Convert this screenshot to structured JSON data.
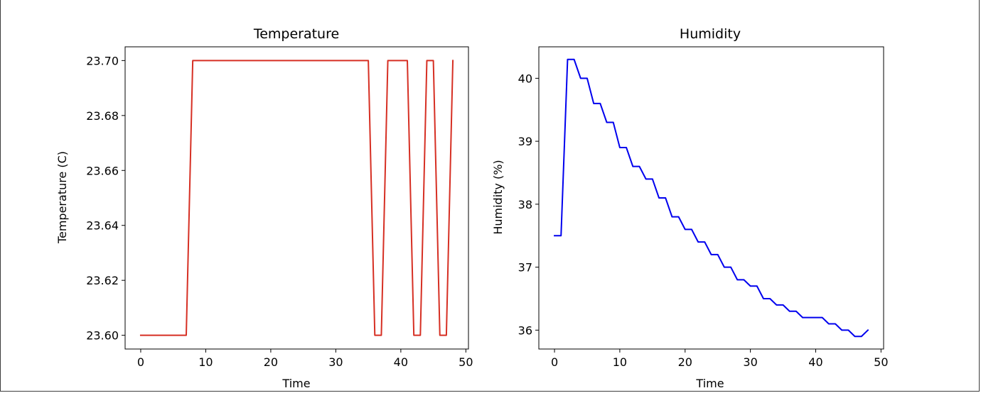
{
  "chart_data": [
    {
      "type": "line",
      "title": "Temperature",
      "xlabel": "Time",
      "ylabel": "Temperature (C)",
      "xlim": [
        -2.4,
        50.4
      ],
      "ylim": [
        23.595,
        23.705
      ],
      "xticks": [
        0,
        10,
        20,
        30,
        40,
        50
      ],
      "xtick_labels": [
        "0",
        "10",
        "20",
        "30",
        "40",
        "50"
      ],
      "yticks": [
        23.6,
        23.62,
        23.64,
        23.66,
        23.68,
        23.7
      ],
      "ytick_labels": [
        "23.60",
        "23.62",
        "23.64",
        "23.66",
        "23.68",
        "23.70"
      ],
      "grid": false,
      "color": "#d62f23",
      "x": [
        0,
        1,
        2,
        3,
        4,
        5,
        6,
        7,
        8,
        9,
        10,
        11,
        12,
        13,
        14,
        15,
        16,
        17,
        18,
        19,
        20,
        21,
        22,
        23,
        24,
        25,
        26,
        27,
        28,
        29,
        30,
        31,
        32,
        33,
        34,
        35,
        36,
        37,
        38,
        39,
        40,
        41,
        42,
        43,
        44,
        45,
        46,
        47,
        48
      ],
      "y": [
        23.6,
        23.6,
        23.6,
        23.6,
        23.6,
        23.6,
        23.6,
        23.6,
        23.7,
        23.7,
        23.7,
        23.7,
        23.7,
        23.7,
        23.7,
        23.7,
        23.7,
        23.7,
        23.7,
        23.7,
        23.7,
        23.7,
        23.7,
        23.7,
        23.7,
        23.7,
        23.7,
        23.7,
        23.7,
        23.7,
        23.7,
        23.7,
        23.7,
        23.7,
        23.7,
        23.7,
        23.6,
        23.6,
        23.7,
        23.7,
        23.7,
        23.7,
        23.6,
        23.6,
        23.7,
        23.7,
        23.6,
        23.6,
        23.7
      ]
    },
    {
      "type": "line",
      "title": "Humidity",
      "xlabel": "Time",
      "ylabel": "Humidity (%)",
      "xlim": [
        -2.4,
        50.4
      ],
      "ylim": [
        35.7,
        40.5
      ],
      "xticks": [
        0,
        10,
        20,
        30,
        40,
        50
      ],
      "xtick_labels": [
        "0",
        "10",
        "20",
        "30",
        "40",
        "50"
      ],
      "yticks": [
        36,
        37,
        38,
        39,
        40
      ],
      "ytick_labels": [
        "36",
        "37",
        "38",
        "39",
        "40"
      ],
      "grid": false,
      "color": "#0000ee",
      "x": [
        0,
        1,
        2,
        3,
        4,
        5,
        6,
        7,
        8,
        9,
        10,
        11,
        12,
        13,
        14,
        15,
        16,
        17,
        18,
        19,
        20,
        21,
        22,
        23,
        24,
        25,
        26,
        27,
        28,
        29,
        30,
        31,
        32,
        33,
        34,
        35,
        36,
        37,
        38,
        39,
        40,
        41,
        42,
        43,
        44,
        45,
        46,
        47,
        48
      ],
      "y": [
        37.5,
        37.5,
        40.3,
        40.3,
        40.0,
        40.0,
        39.6,
        39.6,
        39.3,
        39.3,
        38.9,
        38.9,
        38.6,
        38.6,
        38.4,
        38.4,
        38.1,
        38.1,
        37.8,
        37.8,
        37.6,
        37.6,
        37.4,
        37.4,
        37.2,
        37.2,
        37.0,
        37.0,
        36.8,
        36.8,
        36.7,
        36.7,
        36.5,
        36.5,
        36.4,
        36.4,
        36.3,
        36.3,
        36.2,
        36.2,
        36.2,
        36.2,
        36.1,
        36.1,
        36.0,
        36.0,
        35.9,
        35.9,
        36.0
      ]
    }
  ]
}
